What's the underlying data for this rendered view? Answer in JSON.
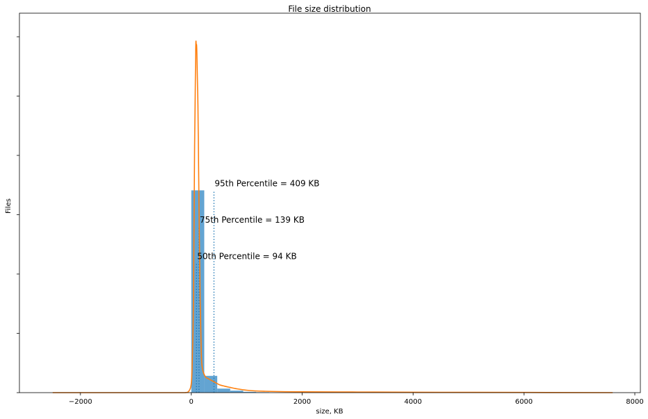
{
  "chart_data": {
    "type": "bar",
    "title": "File size distribution",
    "xlabel": "size, KB",
    "ylabel": "Files",
    "xlim": [
      -3100,
      8100
    ],
    "xticks": [
      -2000,
      0,
      2000,
      4000,
      6000,
      8000
    ],
    "xtick_labels": [
      "−2000",
      "0",
      "2000",
      "4000",
      "6000",
      "8000"
    ],
    "ytick_count": 7,
    "ytick_labels_visible": false,
    "grid": false,
    "colors": {
      "histogram": "#5b9fd0",
      "kde": "#ff7f0e",
      "percentile_line": "#1f77b4"
    },
    "histogram": {
      "bin_edges": [
        0,
        234,
        468,
        702,
        936,
        1170,
        1404
      ],
      "counts": [
        1000,
        83,
        20,
        10,
        4,
        2
      ]
    },
    "kde": {
      "x": [
        -2500,
        -1000,
        -200,
        -100,
        -50,
        0,
        20,
        40,
        60,
        80,
        90,
        100,
        120,
        140,
        160,
        180,
        200,
        250,
        300,
        400,
        500,
        600,
        700,
        800,
        1000,
        1300,
        2000,
        3000,
        4000,
        6000,
        7600
      ],
      "y": [
        0,
        0,
        0,
        0.5,
        5,
        45,
        180,
        480,
        1220,
        1695,
        1715,
        1690,
        1420,
        900,
        450,
        200,
        120,
        80,
        70,
        55,
        40,
        32,
        26,
        20,
        12,
        7,
        4,
        3,
        2,
        1,
        0
      ]
    },
    "kde_y_max_value": 1718,
    "y_range_value": 1718,
    "percentiles": [
      {
        "label": "95th Percentile = 409 KB",
        "value": 409,
        "line_height": 1000
      },
      {
        "label": "75th Percentile = 139 KB",
        "value": 139,
        "line_height": 820
      },
      {
        "label": "50th Percentile = 94 KB",
        "value": 94,
        "line_height": 640
      }
    ]
  }
}
